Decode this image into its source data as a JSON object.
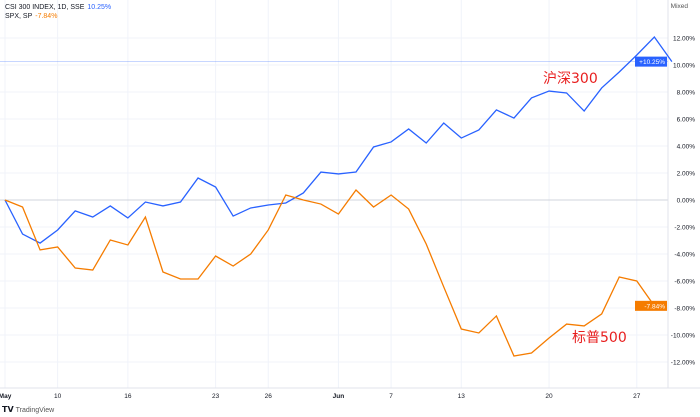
{
  "legend": {
    "series1": "CSI 300 INDEX, 1D, SSE",
    "series1_value": "10.25%",
    "series2": "SPX, SP",
    "series2_value": "-7.84%"
  },
  "scale_mode": "Mixed",
  "brand": "TradingView",
  "annotations": {
    "csi": "沪深300",
    "spx": "标普500"
  },
  "chart_data": {
    "type": "line",
    "ylim": [
      -13,
      13
    ],
    "y_ticks": [
      12,
      10,
      8,
      6,
      4,
      2,
      0,
      -2,
      -4,
      -6,
      -8,
      -10,
      -12
    ],
    "y_tick_labels": [
      "12.00%",
      "10.00%",
      "8.00%",
      "6.00%",
      "4.00%",
      "2.00%",
      "0.00%",
      "-2.00%",
      "-4.00%",
      "-6.00%",
      "-8.00%",
      "-10.00%",
      "-12.00%"
    ],
    "x_ticks": [
      {
        "bar": 0,
        "label": "May"
      },
      {
        "bar": 3,
        "label": "10"
      },
      {
        "bar": 7,
        "label": "16"
      },
      {
        "bar": 12,
        "label": "23"
      },
      {
        "bar": 15,
        "label": "26"
      },
      {
        "bar": 19,
        "label": "Jun"
      },
      {
        "bar": 22,
        "label": "7"
      },
      {
        "bar": 26,
        "label": "13"
      },
      {
        "bar": 31,
        "label": "20"
      },
      {
        "bar": 36,
        "label": "27"
      }
    ],
    "grid": true,
    "series": [
      {
        "name": "CSI 300 INDEX",
        "color": "#2962ff",
        "last_label": "+10.25%",
        "values": [
          0,
          -2.52,
          -3.19,
          -2.22,
          -0.81,
          -1.26,
          -0.44,
          -1.33,
          -0.15,
          -0.44,
          -0.15,
          1.63,
          0.96,
          -1.19,
          -0.59,
          -0.37,
          -0.22,
          0.52,
          2.07,
          1.93,
          2.07,
          3.93,
          4.3,
          5.26,
          4.22,
          5.7,
          4.59,
          5.19,
          6.67,
          6.07,
          7.56,
          8.07,
          7.93,
          6.59,
          8.3,
          9.48,
          10.74,
          12.07,
          10.25
        ]
      },
      {
        "name": "SPX",
        "color": "#f57c00",
        "last_label": "-7.84%",
        "values": [
          0,
          -0.52,
          -3.7,
          -3.48,
          -5.04,
          -5.19,
          -2.96,
          -3.33,
          -1.26,
          -5.33,
          -5.85,
          -5.85,
          -4.15,
          -4.89,
          -4.0,
          -2.22,
          0.37,
          0,
          -0.3,
          -1.04,
          0.74,
          -0.52,
          0.37,
          -0.67,
          -3.26,
          -6.44,
          -9.56,
          -9.85,
          -8.59,
          -11.56,
          -11.33,
          -10.22,
          -9.19,
          -9.33,
          -8.44,
          -5.7,
          -6.0,
          -7.84
        ]
      }
    ]
  }
}
